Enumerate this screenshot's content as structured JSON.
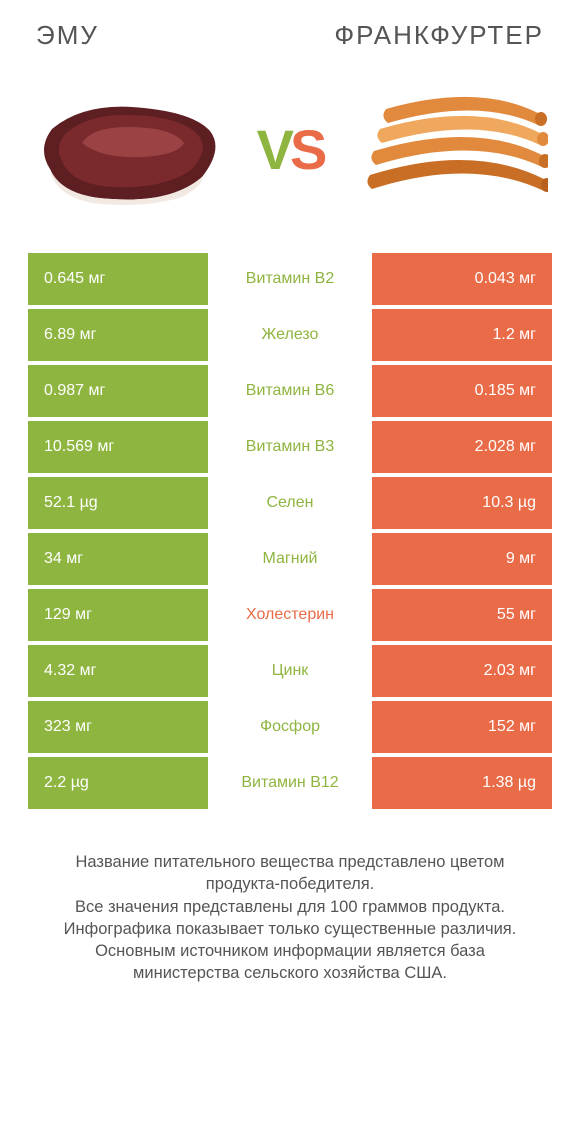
{
  "colors": {
    "left": "#8eb53f",
    "right": "#ea6b47",
    "nutrient_default": "#8eb53f",
    "text": "#555555",
    "bg": "#ffffff"
  },
  "header": {
    "left_title": "ЭМУ",
    "right_title": "ФРАНКФУРТЕР"
  },
  "vs": {
    "v": "V",
    "s": "S"
  },
  "rows": [
    {
      "left": "0.645 мг",
      "nutrient": "Витамин B2",
      "right": "0.043 мг",
      "nutrient_color": "#8eb53f"
    },
    {
      "left": "6.89 мг",
      "nutrient": "Железо",
      "right": "1.2 мг",
      "nutrient_color": "#8eb53f"
    },
    {
      "left": "0.987 мг",
      "nutrient": "Витамин B6",
      "right": "0.185 мг",
      "nutrient_color": "#8eb53f"
    },
    {
      "left": "10.569 мг",
      "nutrient": "Витамин B3",
      "right": "2.028 мг",
      "nutrient_color": "#8eb53f"
    },
    {
      "left": "52.1 µg",
      "nutrient": "Селен",
      "right": "10.3 µg",
      "nutrient_color": "#8eb53f"
    },
    {
      "left": "34 мг",
      "nutrient": "Магний",
      "right": "9 мг",
      "nutrient_color": "#8eb53f"
    },
    {
      "left": "129 мг",
      "nutrient": "Холестерин",
      "right": "55 мг",
      "nutrient_color": "#ea6b47"
    },
    {
      "left": "4.32 мг",
      "nutrient": "Цинк",
      "right": "2.03 мг",
      "nutrient_color": "#8eb53f"
    },
    {
      "left": "323 мг",
      "nutrient": "Фосфор",
      "right": "152 мг",
      "nutrient_color": "#8eb53f"
    },
    {
      "left": "2.2 µg",
      "nutrient": "Витамин B12",
      "right": "1.38 µg",
      "nutrient_color": "#8eb53f"
    }
  ],
  "footer": {
    "line1": "Название питательного вещества представлено цветом продукта-победителя.",
    "line2": "Все значения представлены для 100 граммов продукта.",
    "line3": "Инфографика показывает только существенные различия.",
    "line4": "Основным источником информации является база министерства сельского хозяйства США."
  },
  "graphics": {
    "meat": {
      "fill_dark": "#5e1f22",
      "fill_mid": "#7a2a2c",
      "highlight": "#a84d4f",
      "fat": "#f2e9e3"
    },
    "sausage": {
      "fill": "#e18a3d",
      "fill_light": "#f0a85f",
      "fill_dark": "#c96f25"
    }
  }
}
